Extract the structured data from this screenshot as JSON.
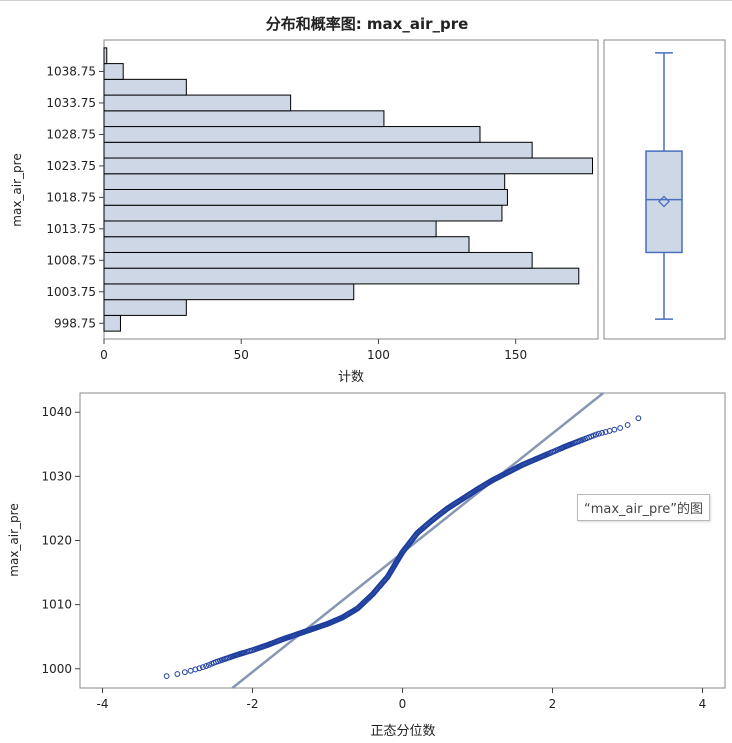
{
  "title": "分布和概率图: max_air_pre",
  "colors": {
    "bar_fill": "#cdd7e6",
    "bar_stroke": "#000000",
    "box_stroke": "#4a6fbf",
    "point": "#1f3f9e",
    "ref_line": "#8797b3",
    "frame": "#888888"
  },
  "chart_data": [
    {
      "type": "bar",
      "orientation": "horizontal",
      "title": "分布和概率图: max_air_pre",
      "xlabel": "计数",
      "ylabel": "max_air_pre",
      "xlim": [
        0,
        180
      ],
      "ylim": [
        996.25,
        1043.75
      ],
      "xticks": [
        "0",
        "50",
        "100",
        "150"
      ],
      "yticks": [
        "998.75",
        "1003.75",
        "1008.75",
        "1013.75",
        "1018.75",
        "1023.75",
        "1028.75",
        "1033.75",
        "1038.75"
      ],
      "bin_width": 2.5,
      "bin_midpoints": [
        998.75,
        1001.25,
        1003.75,
        1006.25,
        1008.75,
        1011.25,
        1013.75,
        1016.25,
        1018.75,
        1021.25,
        1023.75,
        1026.25,
        1028.75,
        1031.25,
        1033.75,
        1036.25,
        1038.75,
        1041.25
      ],
      "values": [
        6,
        30,
        91,
        173,
        156,
        133,
        121,
        145,
        147,
        146,
        178,
        156,
        137,
        102,
        68,
        30,
        7,
        1
      ],
      "grid": false
    },
    {
      "type": "box",
      "ylim": [
        996.25,
        1043.75
      ],
      "whisker_low": 999.4,
      "q1": 1010.0,
      "median": 1018.4,
      "mean": 1018.1,
      "q3": 1026.1,
      "whisker_high": 1041.7
    },
    {
      "type": "scatter",
      "subtype": "normal_qq",
      "xlabel": "正态分位数",
      "ylabel": "max_air_pre",
      "xlim": [
        -4.3,
        4.3
      ],
      "ylim": [
        997.0,
        1043.0
      ],
      "xticks": [
        "-4",
        "-2",
        "0",
        "2",
        "4"
      ],
      "yticks": [
        "1000",
        "1010",
        "1020",
        "1030",
        "1040"
      ],
      "n_points": 1957,
      "quantile_curve": {
        "x": [
          -3.38,
          -3.1,
          -2.96,
          -2.82,
          -2.7,
          -2.6,
          -2.5,
          -2.4,
          -2.2,
          -2.0,
          -1.8,
          -1.6,
          -1.4,
          -1.2,
          -1.0,
          -0.8,
          -0.6,
          -0.4,
          -0.2,
          0.0,
          0.2,
          0.4,
          0.6,
          0.8,
          1.0,
          1.2,
          1.4,
          1.6,
          1.8,
          2.0,
          2.2,
          2.4,
          2.6,
          2.8,
          2.95,
          3.1,
          3.4
        ],
        "y": [
          998.6,
          998.9,
          999.3,
          999.7,
          1000.1,
          1000.5,
          1001.0,
          1001.4,
          1002.2,
          1002.9,
          1003.7,
          1004.6,
          1005.4,
          1006.2,
          1007.0,
          1008.0,
          1009.4,
          1011.6,
          1014.3,
          1018.2,
          1021.2,
          1023.2,
          1025.0,
          1026.5,
          1028.0,
          1029.4,
          1030.6,
          1031.8,
          1032.8,
          1033.8,
          1034.8,
          1035.7,
          1036.6,
          1037.2,
          1037.7,
          1038.6,
          1041.7
        ]
      },
      "reference_line": {
        "intercept": 1018.1,
        "slope": 9.3
      },
      "grid": false,
      "tooltip": "“max_air_pre”的图"
    }
  ]
}
